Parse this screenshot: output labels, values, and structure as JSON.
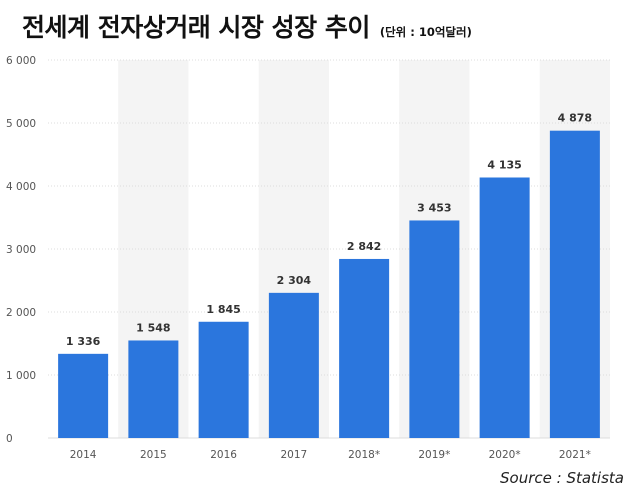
{
  "title": "전세계 전자상거래 시장 성장 추이",
  "unit_label": "(단위 : 10억달러)",
  "source": "Source : Statista",
  "colors": {
    "bar": "#2b76dd",
    "band": "#f4f4f4",
    "grid": "#dcdcdc"
  },
  "chart_data": {
    "type": "bar",
    "title": "전세계 전자상거래 시장 성장 추이",
    "categories": [
      "2014",
      "2015",
      "2016",
      "2017",
      "2018*",
      "2019*",
      "2020*",
      "2021*"
    ],
    "values": [
      1336,
      1548,
      1845,
      2304,
      2842,
      3453,
      4135,
      4878
    ],
    "value_labels": [
      "1 336",
      "1 548",
      "1 845",
      "2 304",
      "2 842",
      "3 453",
      "4 135",
      "4 878"
    ],
    "yticks": [
      0,
      1000,
      2000,
      3000,
      4000,
      5000,
      6000
    ],
    "ytick_labels": [
      "0",
      "1 000",
      "2 000",
      "3 000",
      "4 000",
      "5 000",
      "6 000"
    ],
    "ylim": [
      0,
      6000
    ],
    "grid": true,
    "legend": "none"
  }
}
